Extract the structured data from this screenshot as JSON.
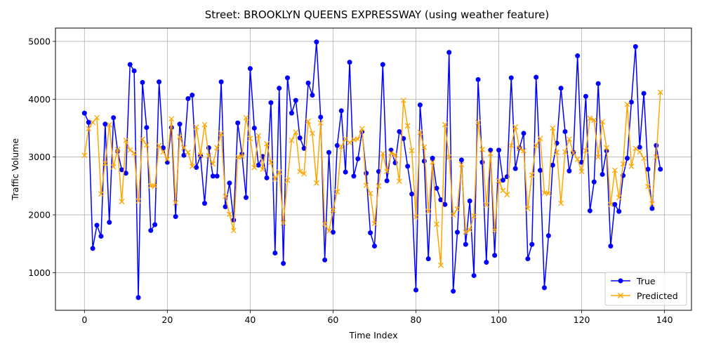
{
  "chart_data": {
    "type": "line",
    "title": "Street: BROOKLYN QUEENS EXPRESSWAY (using weather feature)",
    "xlabel": "Time Index",
    "ylabel": "Traffic Volume",
    "xlim": [
      -7,
      146.5
    ],
    "ylim": [
      350,
      5230
    ],
    "xticks": [
      0,
      20,
      40,
      60,
      80,
      100,
      120,
      140
    ],
    "yticks": [
      1000,
      2000,
      3000,
      4000,
      5000
    ],
    "grid": true,
    "legend_position": "lower-right",
    "x": [
      0,
      1,
      2,
      3,
      4,
      5,
      6,
      7,
      8,
      9,
      10,
      11,
      12,
      13,
      14,
      15,
      16,
      17,
      18,
      19,
      20,
      21,
      22,
      23,
      24,
      25,
      26,
      27,
      28,
      29,
      30,
      31,
      32,
      33,
      34,
      35,
      36,
      37,
      38,
      39,
      40,
      41,
      42,
      43,
      44,
      45,
      46,
      47,
      48,
      49,
      50,
      51,
      52,
      53,
      54,
      55,
      56,
      57,
      58,
      59,
      60,
      61,
      62,
      63,
      64,
      65,
      66,
      67,
      68,
      69,
      70,
      71,
      72,
      73,
      74,
      75,
      76,
      77,
      78,
      79,
      80,
      81,
      82,
      83,
      84,
      85,
      86,
      87,
      88,
      89,
      90,
      91,
      92,
      93,
      94,
      95,
      96,
      97,
      98,
      99,
      100,
      101,
      102,
      103,
      104,
      105,
      106,
      107,
      108,
      109,
      110,
      111,
      112,
      113,
      114,
      115,
      116,
      117,
      118,
      119,
      120,
      121,
      122,
      123,
      124,
      125,
      126,
      127,
      128,
      129,
      130,
      131,
      132,
      133,
      134,
      135,
      136,
      137,
      138,
      139
    ],
    "series": [
      {
        "name": "True",
        "color": "#0000ff",
        "marker": "circle",
        "values": [
          3760,
          3600,
          1420,
          1820,
          1630,
          3570,
          1870,
          3680,
          3100,
          2780,
          2720,
          4600,
          4490,
          570,
          4290,
          3510,
          1730,
          1830,
          4300,
          3160,
          2910,
          3510,
          1970,
          3570,
          3030,
          4010,
          4070,
          2820,
          3020,
          2200,
          3160,
          2670,
          2670,
          4300,
          2140,
          2550,
          1910,
          3590,
          3050,
          2300,
          4530,
          3500,
          2860,
          3010,
          2640,
          3940,
          1340,
          4190,
          1160,
          4370,
          3760,
          3980,
          3330,
          3150,
          4280,
          4070,
          4990,
          3690,
          1220,
          3080,
          1700,
          3200,
          3800,
          2740,
          4640,
          2670,
          2970,
          3440,
          2720,
          1690,
          1460,
          2750,
          4600,
          2590,
          3120,
          2900,
          3440,
          3320,
          2840,
          2360,
          700,
          3900,
          2930,
          1240,
          2980,
          2460,
          2260,
          2180,
          4810,
          680,
          1700,
          2950,
          1490,
          2240,
          950,
          4340,
          2910,
          1180,
          3120,
          1300,
          3120,
          2600,
          2660,
          4370,
          2800,
          3160,
          3410,
          1240,
          1490,
          4380,
          2770,
          740,
          1640,
          2860,
          3240,
          4190,
          3440,
          2760,
          3080,
          4750,
          2910,
          4050,
          2070,
          2570,
          4270,
          2700,
          3110,
          1460,
          2180,
          2060,
          2680,
          2980,
          3950,
          4910,
          3170,
          4100,
          2790,
          2110,
          3200,
          2790
        ]
      },
      {
        "name": "Predicted",
        "color": "#ffa500",
        "marker": "x",
        "values": [
          3030,
          3490,
          3600,
          3680,
          2360,
          2890,
          3560,
          2830,
          3130,
          2230,
          3290,
          3120,
          3070,
          2240,
          3310,
          3210,
          2500,
          2500,
          3200,
          3090,
          2960,
          3660,
          2210,
          3350,
          3160,
          3080,
          2840,
          3520,
          3030,
          3560,
          3020,
          2880,
          3160,
          3410,
          2320,
          2010,
          1730,
          3000,
          3010,
          3680,
          3320,
          2820,
          3370,
          2790,
          3230,
          2910,
          2620,
          2740,
          1860,
          2600,
          3290,
          3430,
          2750,
          2710,
          3620,
          3410,
          2550,
          3590,
          1840,
          1720,
          2080,
          2400,
          3180,
          3310,
          3250,
          3300,
          3310,
          3490,
          2510,
          2370,
          1850,
          2500,
          3060,
          2750,
          3070,
          3040,
          2580,
          3980,
          3540,
          3110,
          1960,
          3430,
          3170,
          2060,
          2910,
          1840,
          1130,
          3560,
          3000,
          2000,
          2100,
          2870,
          1700,
          1740,
          1980,
          3600,
          3130,
          2170,
          3060,
          1730,
          2590,
          2420,
          2350,
          3200,
          3520,
          3150,
          3110,
          2110,
          2690,
          3200,
          3320,
          2380,
          2370,
          3500,
          3080,
          2200,
          3090,
          3310,
          3070,
          2960,
          2750,
          3110,
          3670,
          3640,
          3000,
          3610,
          3160,
          2180,
          2770,
          2300,
          2880,
          3910,
          2840,
          3150,
          3090,
          2980,
          2490,
          2190,
          3000,
          4120
        ]
      }
    ]
  }
}
